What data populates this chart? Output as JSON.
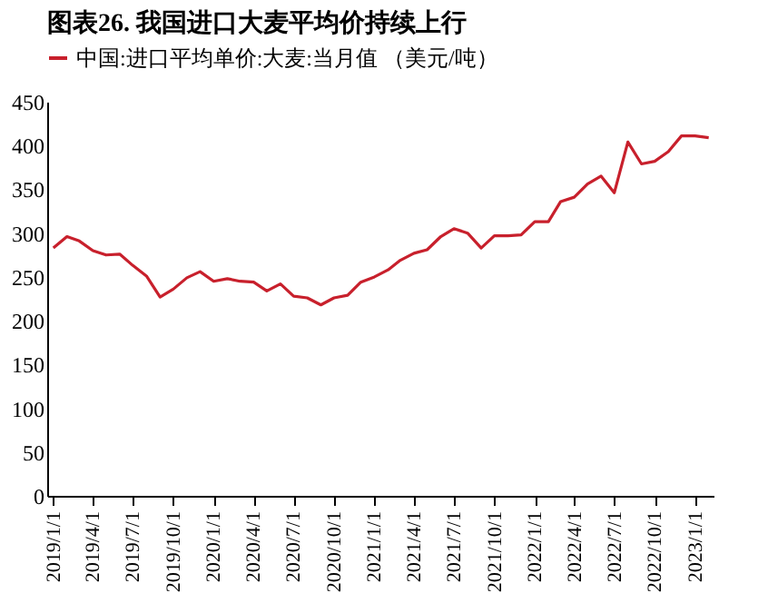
{
  "chart_data": {
    "type": "line",
    "title": "图表26. 我国进口大麦平均价持续上行",
    "x": [
      "2019-01",
      "2019-02",
      "2019-03",
      "2019-04",
      "2019-05",
      "2019-06",
      "2019-07",
      "2019-08",
      "2019-09",
      "2019-10",
      "2019-11",
      "2019-12",
      "2020-01",
      "2020-02",
      "2020-03",
      "2020-04",
      "2020-05",
      "2020-06",
      "2020-07",
      "2020-08",
      "2020-09",
      "2020-10",
      "2020-11",
      "2020-12",
      "2021-01",
      "2021-02",
      "2021-03",
      "2021-04",
      "2021-05",
      "2021-06",
      "2021-07",
      "2021-08",
      "2021-09",
      "2021-10",
      "2021-11",
      "2021-12",
      "2022-01",
      "2022-02",
      "2022-03",
      "2022-04",
      "2022-05",
      "2022-06",
      "2022-07",
      "2022-08",
      "2022-09",
      "2022-10",
      "2022-11",
      "2022-12",
      "2023-01",
      "2023-02"
    ],
    "series": [
      {
        "name": "中国:进口平均单价:大麦:当月值 （美元/吨）",
        "color": "#c8202c",
        "values": [
          283,
          296,
          291,
          280,
          275,
          276,
          263,
          251,
          227,
          236,
          249,
          256,
          245,
          248,
          245,
          244,
          234,
          242,
          228,
          226,
          218,
          226,
          229,
          244,
          250,
          258,
          269,
          277,
          281,
          296,
          305,
          300,
          283,
          297,
          297,
          298,
          313,
          313,
          336,
          341,
          356,
          365,
          346,
          404,
          379,
          382,
          393,
          411,
          411,
          409
        ]
      }
    ],
    "xlim": [
      "2018-12-18",
      "2023-02-12"
    ],
    "xticks": [
      {
        "value": "2019-01-01",
        "label": "2019/1/1"
      },
      {
        "value": "2019-04-01",
        "label": "2019/4/1"
      },
      {
        "value": "2019-07-01",
        "label": "2019/7/1"
      },
      {
        "value": "2019-10-01",
        "label": "2019/10/1"
      },
      {
        "value": "2020-01-01",
        "label": "2020/1/1"
      },
      {
        "value": "2020-04-01",
        "label": "2020/4/1"
      },
      {
        "value": "2020-07-01",
        "label": "2020/7/1"
      },
      {
        "value": "2020-10-01",
        "label": "2020/10/1"
      },
      {
        "value": "2021-01-01",
        "label": "2021/1/1"
      },
      {
        "value": "2021-04-01",
        "label": "2021/4/1"
      },
      {
        "value": "2021-07-01",
        "label": "2021/7/1"
      },
      {
        "value": "2021-10-01",
        "label": "2021/10/1"
      },
      {
        "value": "2022-01-01",
        "label": "2022/1/1"
      },
      {
        "value": "2022-04-01",
        "label": "2022/4/1"
      },
      {
        "value": "2022-07-01",
        "label": "2022/7/1"
      },
      {
        "value": "2022-10-01",
        "label": "2022/10/1"
      },
      {
        "value": "2023-01-01",
        "label": "2023/1/1"
      }
    ],
    "ylim": [
      0,
      450
    ],
    "yticks": [
      0,
      50,
      100,
      150,
      200,
      250,
      300,
      350,
      400,
      450
    ],
    "grid": false,
    "legend": "top"
  }
}
